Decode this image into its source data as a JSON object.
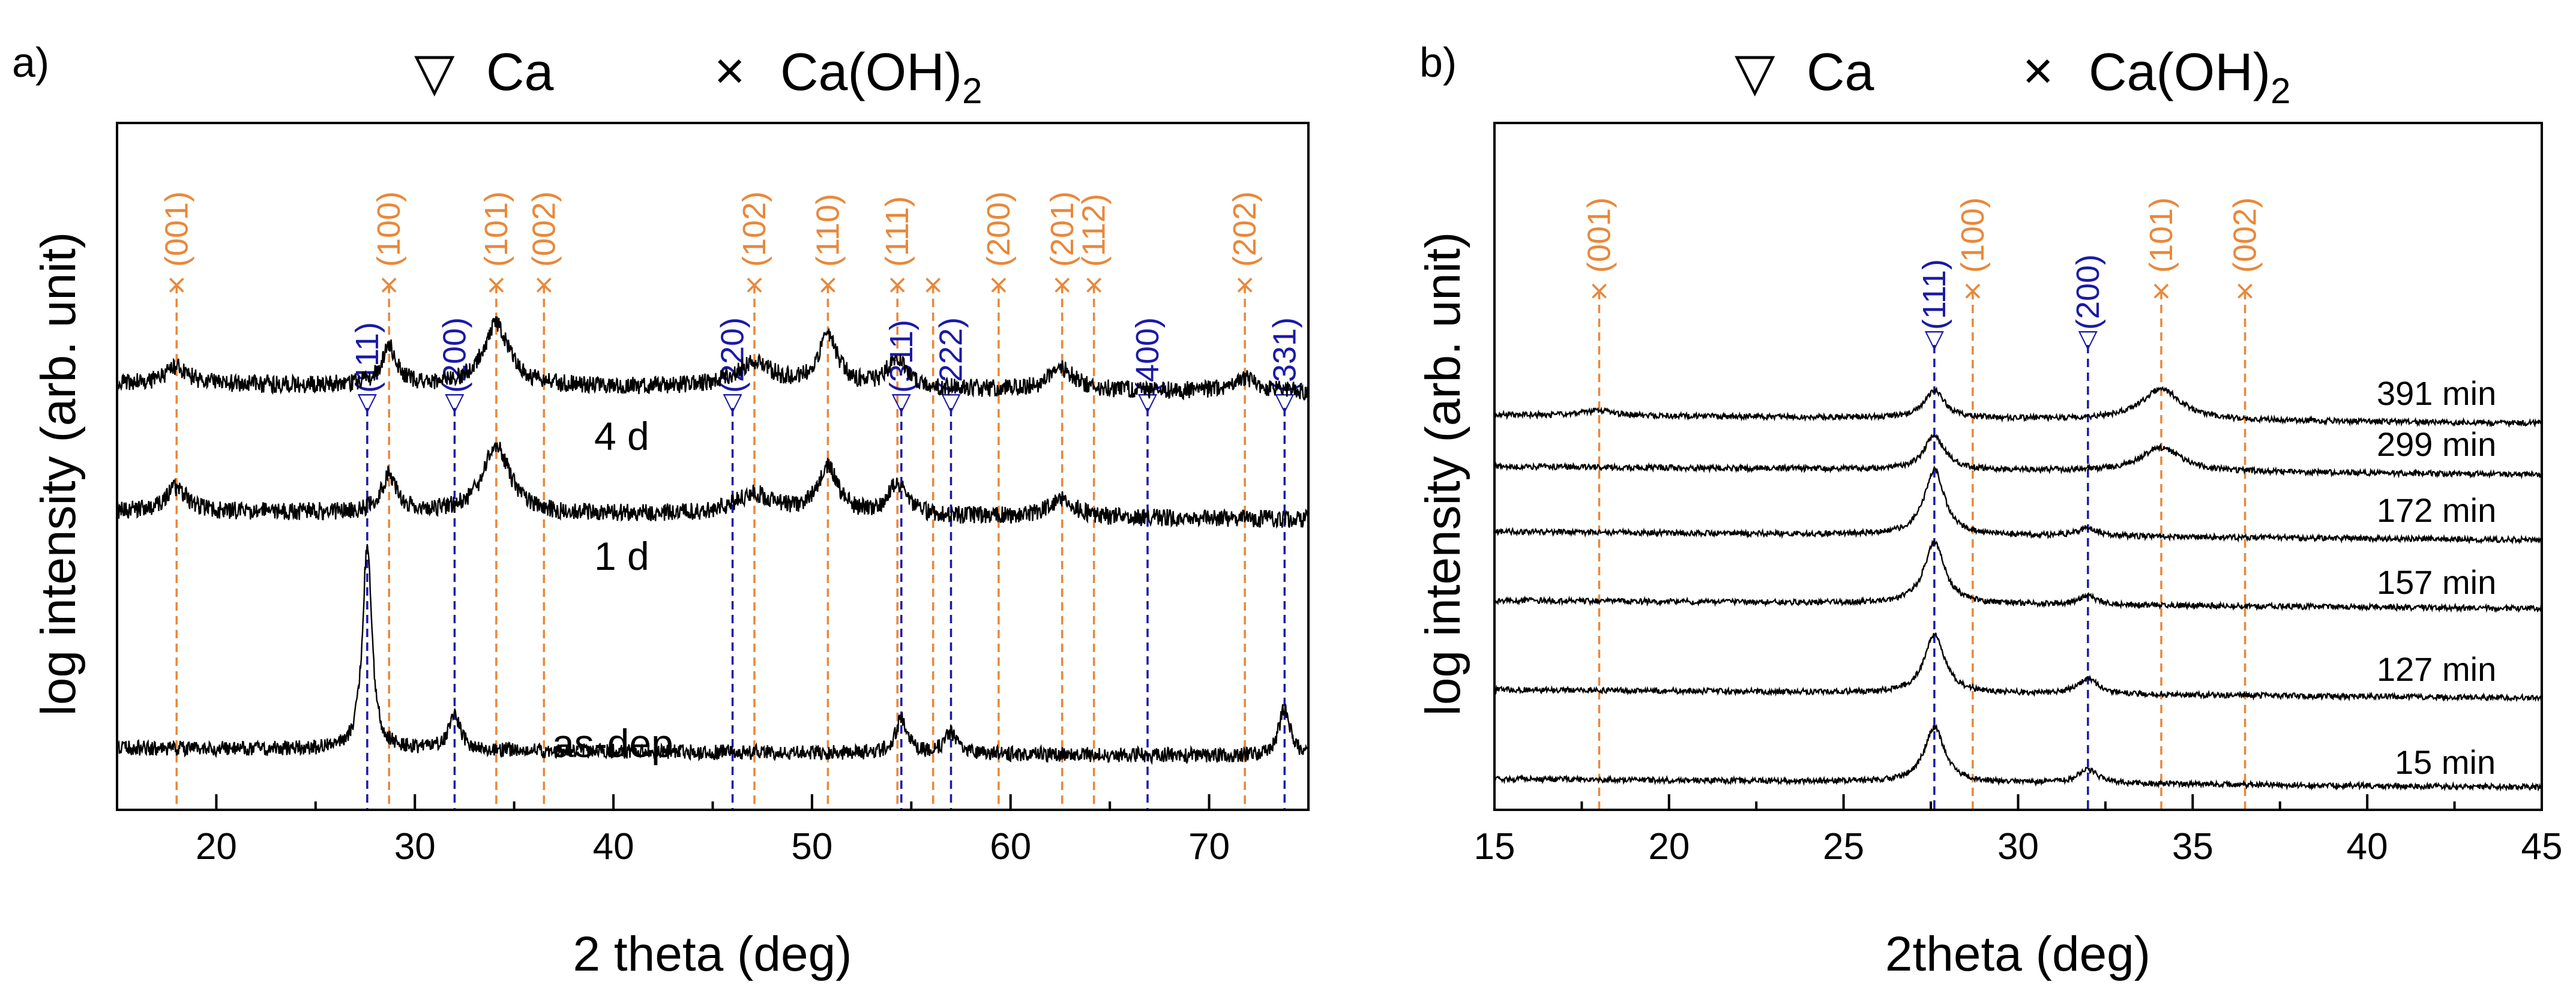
{
  "colors": {
    "ca": "#1a1aa6",
    "caoh2": "#e8883a",
    "trace": "#000000"
  },
  "legend": {
    "ca_label": "Ca",
    "caoh2_label": "Ca(OH)",
    "caoh2_sub": "2",
    "ca_symbol": "▽",
    "caoh2_symbol": "×"
  },
  "chart_data": [
    {
      "type": "line",
      "panel_label": "a)",
      "xlabel": "2 theta (deg)",
      "ylabel": "log intensity (arb. unit)",
      "xlim": [
        15,
        75
      ],
      "xticks": [
        20,
        30,
        40,
        50,
        60,
        70
      ],
      "ca_peaks": [
        {
          "pos": 27.6,
          "label": "(111)"
        },
        {
          "pos": 32.0,
          "label": "(200)"
        },
        {
          "pos": 46.0,
          "label": "(220)"
        },
        {
          "pos": 54.5,
          "label": "(311)"
        },
        {
          "pos": 57.0,
          "label": "(222)"
        },
        {
          "pos": 66.9,
          "label": "(400)"
        },
        {
          "pos": 73.8,
          "label": "(331)"
        }
      ],
      "caoh2_peaks": [
        {
          "pos": 18.0,
          "label": "(001)"
        },
        {
          "pos": 28.7,
          "label": "(100)"
        },
        {
          "pos": 34.1,
          "label": "(101)"
        },
        {
          "pos": 36.5,
          "label": "(002)"
        },
        {
          "pos": 47.1,
          "label": "(102)"
        },
        {
          "pos": 50.8,
          "label": "(110)"
        },
        {
          "pos": 54.3,
          "label": "(111)"
        },
        {
          "pos": 56.1,
          "label": ""
        },
        {
          "pos": 59.4,
          "label": "(200)"
        },
        {
          "pos": 62.6,
          "label": "(201)"
        },
        {
          "pos": 64.2,
          "label": "(112)"
        },
        {
          "pos": 71.8,
          "label": "(202)"
        }
      ],
      "series": [
        {
          "name": "4 d",
          "baseline": 0.62,
          "noise": 0.013,
          "peaks": [
            [
              18.0,
              0.025,
              0.7
            ],
            [
              28.7,
              0.055,
              0.45
            ],
            [
              34.1,
              0.09,
              0.8
            ],
            [
              47.1,
              0.035,
              1.2
            ],
            [
              50.8,
              0.075,
              0.6
            ],
            [
              54.3,
              0.045,
              0.6
            ],
            [
              62.6,
              0.03,
              0.8
            ],
            [
              71.8,
              0.02,
              0.8
            ]
          ]
        },
        {
          "name": "1 d",
          "baseline": 0.435,
          "noise": 0.013,
          "peaks": [
            [
              18.0,
              0.035,
              0.6
            ],
            [
              28.7,
              0.055,
              0.45
            ],
            [
              34.1,
              0.1,
              0.8
            ],
            [
              47.1,
              0.03,
              1.2
            ],
            [
              50.8,
              0.07,
              0.6
            ],
            [
              54.3,
              0.045,
              0.6
            ],
            [
              62.6,
              0.025,
              0.8
            ]
          ]
        },
        {
          "name": "as-dep.",
          "baseline": 0.09,
          "noise": 0.011,
          "peaks": [
            [
              27.6,
              0.3,
              0.28
            ],
            [
              32.0,
              0.05,
              0.35
            ],
            [
              54.5,
              0.05,
              0.35
            ],
            [
              57.0,
              0.03,
              0.4
            ],
            [
              73.8,
              0.07,
              0.35
            ]
          ]
        }
      ]
    },
    {
      "type": "line",
      "panel_label": "b)",
      "xlabel": "2theta (deg)",
      "ylabel": "log intensity (arb. unit)",
      "xlim": [
        15,
        45
      ],
      "xticks": [
        15,
        20,
        25,
        30,
        35,
        40,
        45
      ],
      "ca_peaks": [
        {
          "pos": 27.6,
          "label": "(111)"
        },
        {
          "pos": 32.0,
          "label": "(200)"
        }
      ],
      "caoh2_peaks": [
        {
          "pos": 18.0,
          "label": "(001)"
        },
        {
          "pos": 28.7,
          "label": "(100)"
        },
        {
          "pos": 34.1,
          "label": "(101)"
        },
        {
          "pos": 36.5,
          "label": "(002)"
        }
      ],
      "series": [
        {
          "name": "391 min",
          "baseline": 0.575,
          "noise": 0.004,
          "peaks": [
            [
              27.6,
              0.04,
              0.35
            ],
            [
              34.1,
              0.045,
              0.7
            ],
            [
              18.0,
              0.008,
              0.5
            ]
          ]
        },
        {
          "name": "299 min",
          "baseline": 0.5,
          "noise": 0.004,
          "peaks": [
            [
              27.6,
              0.05,
              0.35
            ],
            [
              34.1,
              0.035,
              0.7
            ]
          ]
        },
        {
          "name": "172 min",
          "baseline": 0.405,
          "noise": 0.004,
          "peaks": [
            [
              27.6,
              0.095,
              0.35
            ],
            [
              32.0,
              0.012,
              0.35
            ]
          ]
        },
        {
          "name": "157 min",
          "baseline": 0.305,
          "noise": 0.004,
          "peaks": [
            [
              27.6,
              0.09,
              0.35
            ],
            [
              32.0,
              0.012,
              0.35
            ]
          ]
        },
        {
          "name": "127 min",
          "baseline": 0.175,
          "noise": 0.004,
          "peaks": [
            [
              27.6,
              0.085,
              0.35
            ],
            [
              32.0,
              0.022,
              0.35
            ]
          ]
        },
        {
          "name": "15 min",
          "baseline": 0.045,
          "noise": 0.004,
          "peaks": [
            [
              27.6,
              0.08,
              0.35
            ],
            [
              32.0,
              0.02,
              0.35
            ]
          ]
        }
      ]
    }
  ]
}
